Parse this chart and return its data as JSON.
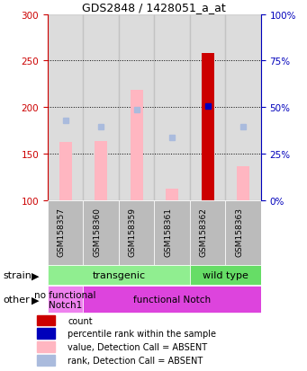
{
  "title": "GDS2848 / 1428051_a_at",
  "samples": [
    "GSM158357",
    "GSM158360",
    "GSM158359",
    "GSM158361",
    "GSM158362",
    "GSM158363"
  ],
  "value_absent": [
    162,
    163,
    218,
    112,
    258,
    136
  ],
  "rank_absent": [
    186,
    179,
    197,
    167,
    201,
    179
  ],
  "count_val": 258,
  "count_sample_idx": 4,
  "percentile_val": 201,
  "percentile_sample_idx": 4,
  "ylim_left": [
    100,
    300
  ],
  "yticks_left": [
    100,
    150,
    200,
    250,
    300
  ],
  "yticks_right": [
    0,
    25,
    50,
    75,
    100
  ],
  "ytick_labels_right": [
    "0%",
    "25%",
    "50%",
    "75%",
    "100%"
  ],
  "strain_groups": [
    {
      "label": "transgenic",
      "cols": [
        0,
        1,
        2,
        3
      ],
      "color": "#90EE90"
    },
    {
      "label": "wild type",
      "cols": [
        4,
        5
      ],
      "color": "#66DD66"
    }
  ],
  "other_groups": [
    {
      "label": "no functional\nNotch1",
      "cols": [
        0
      ],
      "color": "#EE82EE"
    },
    {
      "label": "functional Notch",
      "cols": [
        1,
        2,
        3,
        4,
        5
      ],
      "color": "#DD44DD"
    }
  ],
  "value_color": "#FFB6C1",
  "rank_color": "#AABBDD",
  "count_color": "#CC0000",
  "percentile_color": "#0000BB",
  "left_axis_color": "#CC0000",
  "right_axis_color": "#0000BB",
  "sample_bg_color": "#BBBBBB",
  "bar_bottom": 100,
  "bar_width": 0.35,
  "grid_ticks": [
    150,
    200,
    250
  ],
  "legend_items": [
    {
      "color": "#CC0000",
      "label": "count"
    },
    {
      "color": "#0000BB",
      "label": "percentile rank within the sample"
    },
    {
      "color": "#FFB6C1",
      "label": "value, Detection Call = ABSENT"
    },
    {
      "color": "#AABBDD",
      "label": "rank, Detection Call = ABSENT"
    }
  ]
}
